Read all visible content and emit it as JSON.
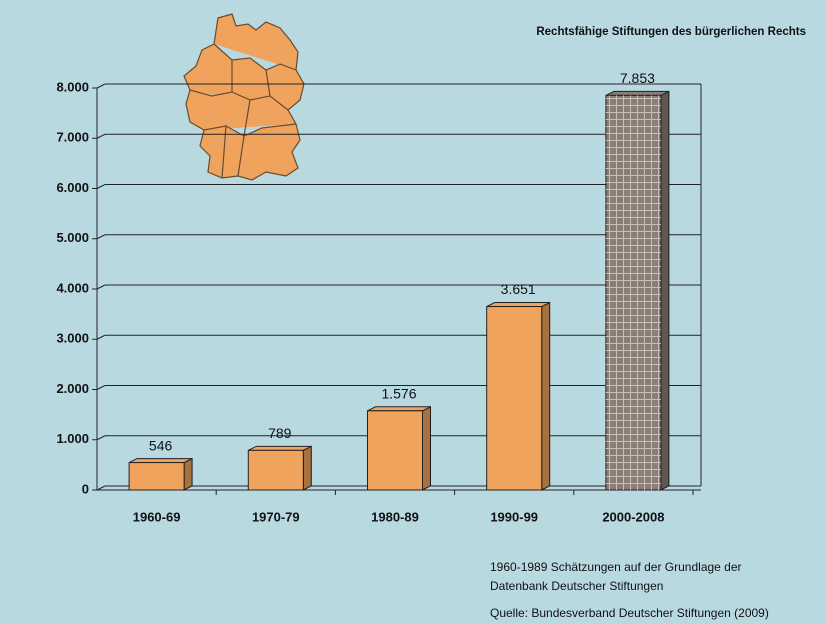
{
  "chart_data": {
    "type": "bar3d",
    "title": "Rechtsfähige Stiftungen des bürgerlichen Rechts",
    "categories": [
      "1960-69",
      "1970-79",
      "1980-89",
      "1990-99",
      "2000-2008"
    ],
    "values": [
      546,
      789,
      1576,
      3651,
      7853
    ],
    "value_labels": [
      "546",
      "789",
      "1.576",
      "3.651",
      "7.853"
    ],
    "colors": [
      "#f0a35c",
      "#f0a35c",
      "#f0a35c",
      "#f0a35c",
      "#8a7d76"
    ],
    "hatched": [
      false,
      false,
      false,
      false,
      true
    ],
    "ylim": [
      0,
      8000
    ],
    "yticks": [
      0,
      {
        "value": 1000,
        "label": "1.000"
      },
      {
        "value": 2000,
        "label": "2.000"
      },
      {
        "value": 3000,
        "label": "3.000"
      },
      {
        "value": 4000,
        "label": "4.000"
      },
      {
        "value": 5000,
        "label": "5.000"
      },
      {
        "value": 6000,
        "label": "6.000"
      },
      {
        "value": 7000,
        "label": "7.000"
      },
      {
        "value": 8000,
        "label": "8.000"
      }
    ],
    "grid": true,
    "notes": [
      "1960-1989 Schätzungen auf der Grundlage der",
      "Datenbank Deutscher Stiftungen"
    ],
    "source": "Quelle: Bundesverband Deutscher Stiftungen (2009)"
  }
}
